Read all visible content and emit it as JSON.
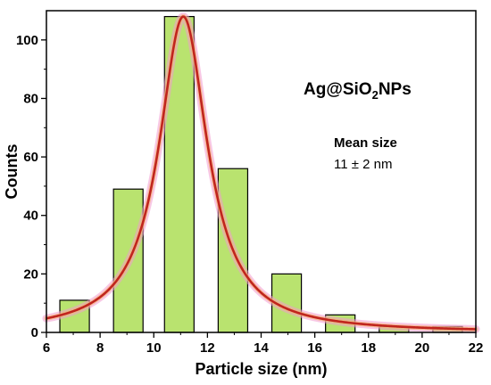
{
  "chart_data": {
    "type": "bar",
    "x_axis": {
      "label": "Particle size (nm)",
      "range": [
        6,
        22
      ],
      "ticks": [
        6,
        8,
        10,
        12,
        14,
        16,
        18,
        20,
        22
      ]
    },
    "y_axis": {
      "label": "Counts",
      "range": [
        0,
        110
      ],
      "ticks": [
        0,
        20,
        40,
        60,
        80,
        100
      ]
    },
    "bars": [
      {
        "x_start": 6.5,
        "x_end": 7.6,
        "value": 11
      },
      {
        "x_start": 8.5,
        "x_end": 9.6,
        "value": 49
      },
      {
        "x_start": 10.4,
        "x_end": 11.5,
        "value": 108
      },
      {
        "x_start": 12.4,
        "x_end": 13.5,
        "value": 56
      },
      {
        "x_start": 14.4,
        "x_end": 15.5,
        "value": 20
      },
      {
        "x_start": 16.4,
        "x_end": 17.5,
        "value": 6
      },
      {
        "x_start": 18.4,
        "x_end": 19.5,
        "value": 2
      },
      {
        "x_start": 20.4,
        "x_end": 21.5,
        "value": 2
      }
    ],
    "fit_curve": {
      "type": "lorentzian",
      "center": 11.1,
      "hwhm": 1.1,
      "amplitude": 108,
      "color": "#c0251e",
      "glow_color": "#f29ad0"
    },
    "bar_fill": "#b9e36f",
    "bar_stroke": "#000000",
    "annotations": {
      "sample_main": "Ag@SiO",
      "sample_sub": "2",
      "sample_suffix": "NPs",
      "mean_label": "Mean size",
      "mean_value": "11 ± 2 nm"
    }
  }
}
